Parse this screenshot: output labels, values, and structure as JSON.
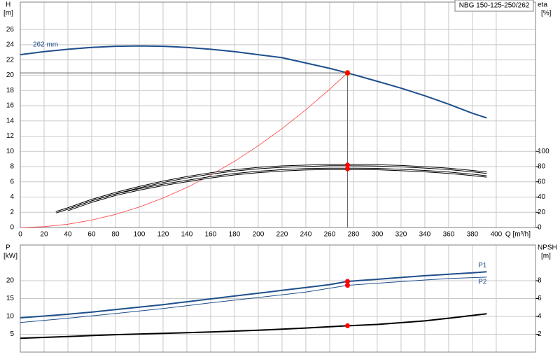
{
  "chart_data": [
    {
      "type": "line",
      "title": "NBG 150-125-250/262",
      "ylabel": "H",
      "yunit": "[m]",
      "y2label": "eta",
      "y2unit": "[%]",
      "xlabel": "Q [m³/h]",
      "xlim": [
        0,
        433
      ],
      "xticks": [
        0,
        20,
        40,
        60,
        80,
        100,
        120,
        140,
        160,
        180,
        200,
        220,
        240,
        260,
        280,
        300,
        320,
        340,
        360,
        380,
        400
      ],
      "ylim": [
        0,
        29.6
      ],
      "yticks": [
        0,
        2,
        4,
        6,
        8,
        10,
        12,
        14,
        16,
        18,
        20,
        22,
        24,
        26
      ],
      "y2lim": [
        0,
        296
      ],
      "y2ticks": [
        0,
        20,
        40,
        60,
        80,
        100
      ],
      "grid": true,
      "duty_point": {
        "x": 275,
        "color": "#ff0000"
      },
      "series": [
        {
          "name": "262 mm",
          "color": "#1f4e8c",
          "line_width": 2,
          "marker_color": "#ffd700",
          "duty_lines": true,
          "x": [
            0,
            20,
            40,
            60,
            80,
            100,
            120,
            140,
            160,
            180,
            200,
            220,
            240,
            260,
            275,
            300,
            320,
            340,
            360,
            380,
            392
          ],
          "values": [
            22.7,
            23.1,
            23.4,
            23.65,
            23.8,
            23.85,
            23.8,
            23.65,
            23.4,
            23.1,
            22.7,
            22.3,
            21.6,
            20.9,
            20.3,
            19.2,
            18.3,
            17.3,
            16.2,
            15.0,
            14.4
          ]
        },
        {
          "color": "#ff4040",
          "line_width": 0.8,
          "x": [
            0,
            20,
            40,
            60,
            80,
            100,
            120,
            140,
            160,
            180,
            200,
            220,
            240,
            260,
            275
          ],
          "values": [
            0,
            0.11,
            0.43,
            0.97,
            1.72,
            2.68,
            3.87,
            5.26,
            6.87,
            8.7,
            10.74,
            12.99,
            15.46,
            18.15,
            20.3
          ]
        },
        {
          "color": "#000000",
          "line_width": 3,
          "style": "double",
          "axis": "y2",
          "x": [
            30,
            40,
            60,
            80,
            100,
            120,
            140,
            160,
            180,
            200,
            220,
            240,
            260,
            275,
            300,
            320,
            340,
            360,
            380,
            392
          ],
          "values": [
            20,
            25,
            36,
            45,
            53,
            60,
            66,
            71,
            75,
            78,
            80,
            81,
            82,
            82,
            81.5,
            80.5,
            79,
            77,
            74,
            72
          ]
        },
        {
          "color": "#000000",
          "line_width": 3,
          "style": "double",
          "axis": "y2",
          "x": [
            40,
            60,
            80,
            100,
            120,
            140,
            160,
            180,
            200,
            220,
            240,
            260,
            275,
            300,
            320,
            340,
            360,
            380,
            392
          ],
          "values": [
            23,
            34,
            43,
            50,
            56,
            61,
            66,
            70,
            73,
            75,
            76.5,
            77,
            77,
            76.8,
            75.5,
            74,
            72,
            69,
            67
          ]
        }
      ]
    },
    {
      "type": "line",
      "ylabel": "P",
      "yunit": "[kW]",
      "y2label": "NPSH",
      "y2unit": "[m]",
      "xlim": [
        0,
        433
      ],
      "ylim": [
        0,
        30
      ],
      "yticks": [
        5,
        10,
        15,
        20
      ],
      "y2lim": [
        0,
        12
      ],
      "y2ticks": [
        2,
        4,
        6,
        8
      ],
      "grid": true,
      "duty_point": {
        "x": 275,
        "color": "#ff0000"
      },
      "series": [
        {
          "name": "P1",
          "color": "#1f4e8c",
          "line_width": 2,
          "x": [
            0,
            20,
            40,
            60,
            80,
            100,
            120,
            140,
            160,
            180,
            200,
            220,
            240,
            260,
            275,
            300,
            320,
            340,
            360,
            380,
            392
          ],
          "values": [
            9.6,
            10.1,
            10.6,
            11.2,
            11.9,
            12.6,
            13.3,
            14.1,
            14.9,
            15.7,
            16.5,
            17.3,
            18.1,
            18.9,
            19.8,
            20.4,
            20.9,
            21.4,
            21.8,
            22.2,
            22.5
          ]
        },
        {
          "name": "P2",
          "color": "#1f4e8c",
          "line_width": 1,
          "x": [
            0,
            40,
            80,
            120,
            160,
            200,
            240,
            275,
            300,
            340,
            360,
            392
          ],
          "values": [
            8.3,
            9.5,
            10.8,
            12.2,
            13.8,
            15.3,
            16.8,
            18.7,
            19.3,
            20.2,
            20.6,
            21.0
          ]
        },
        {
          "color": "#000000",
          "line_width": 2,
          "axis": "y2",
          "x": [
            0,
            40,
            80,
            120,
            160,
            200,
            240,
            275,
            300,
            340,
            360,
            392
          ],
          "values": [
            1.55,
            1.75,
            1.95,
            2.1,
            2.25,
            2.45,
            2.7,
            2.95,
            3.1,
            3.5,
            3.8,
            4.3
          ]
        }
      ]
    }
  ]
}
